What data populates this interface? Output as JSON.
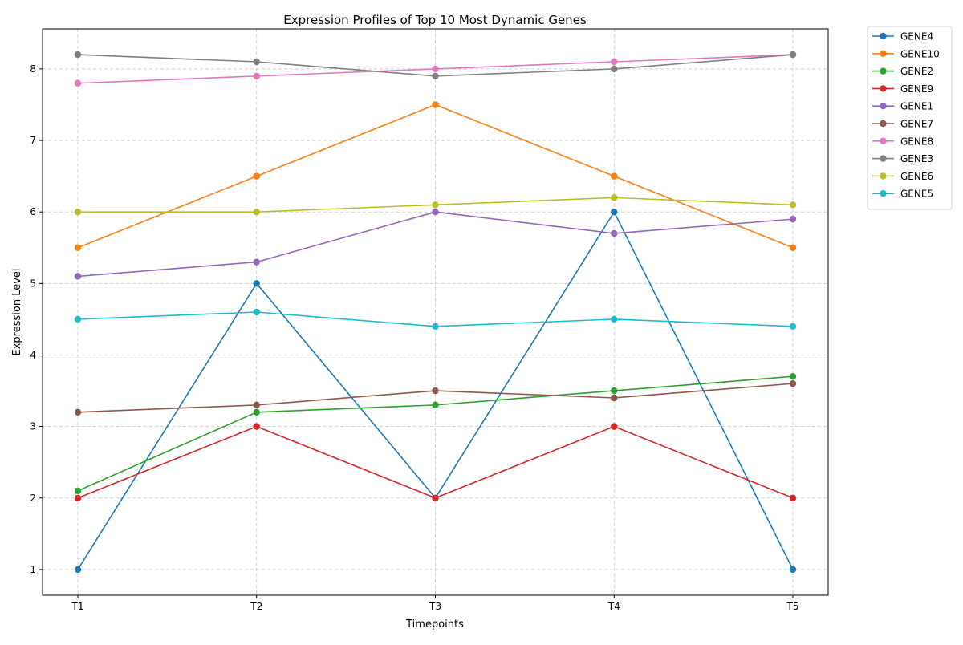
{
  "chart_data": {
    "type": "line",
    "title": "Expression Profiles of Top 10 Most Dynamic Genes",
    "xlabel": "Timepoints",
    "ylabel": "Expression Level",
    "categories": [
      "T1",
      "T2",
      "T3",
      "T4",
      "T5"
    ],
    "yticks": [
      1,
      2,
      3,
      4,
      5,
      6,
      7,
      8
    ],
    "ylim": [
      0.64,
      8.56
    ],
    "grid": true,
    "legend_position": "outside-top-right",
    "series": [
      {
        "name": "GENE4",
        "color": "#1f77b4",
        "values": [
          1.0,
          5.0,
          2.0,
          6.0,
          1.0
        ]
      },
      {
        "name": "GENE10",
        "color": "#ff7f0e",
        "values": [
          5.5,
          6.5,
          7.5,
          6.5,
          5.5
        ]
      },
      {
        "name": "GENE2",
        "color": "#2ca02c",
        "values": [
          2.1,
          3.2,
          3.3,
          3.5,
          3.7
        ]
      },
      {
        "name": "GENE9",
        "color": "#d62728",
        "values": [
          2.0,
          3.0,
          2.0,
          3.0,
          2.0
        ]
      },
      {
        "name": "GENE1",
        "color": "#9467bd",
        "values": [
          5.1,
          5.3,
          6.0,
          5.7,
          5.9
        ]
      },
      {
        "name": "GENE7",
        "color": "#8c564b",
        "values": [
          3.2,
          3.3,
          3.5,
          3.4,
          3.6
        ]
      },
      {
        "name": "GENE8",
        "color": "#e377c2",
        "values": [
          7.8,
          7.9,
          8.0,
          8.1,
          8.2
        ]
      },
      {
        "name": "GENE3",
        "color": "#7f7f7f",
        "values": [
          8.2,
          8.1,
          7.9,
          8.0,
          8.2
        ]
      },
      {
        "name": "GENE6",
        "color": "#bcbd22",
        "values": [
          6.0,
          6.0,
          6.1,
          6.2,
          6.1
        ]
      },
      {
        "name": "GENE5",
        "color": "#17becf",
        "values": [
          4.5,
          4.6,
          4.4,
          4.5,
          4.4
        ]
      }
    ]
  }
}
